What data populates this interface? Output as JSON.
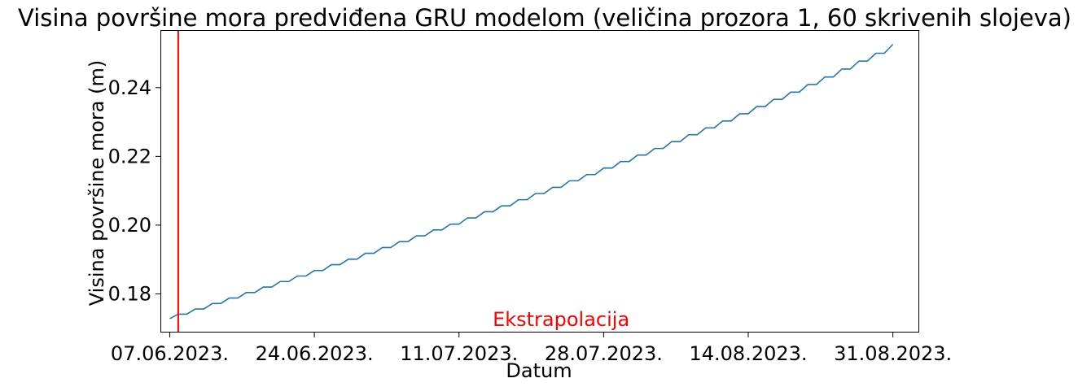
{
  "chart_data": {
    "type": "line",
    "title": "Visina površine mora predviđena GRU modelom (veličina prozora 1, 60 skrivenih slojeva)",
    "xlabel": "Datum",
    "ylabel": "Visina površine mora (m)",
    "ylim": [
      0.169,
      0.2565
    ],
    "xlim": [
      "2023-06-06",
      "2023-09-03"
    ],
    "yticks": [
      {
        "value": 0.18,
        "label": "0.18"
      },
      {
        "value": 0.2,
        "label": "0.20"
      },
      {
        "value": 0.22,
        "label": "0.22"
      },
      {
        "value": 0.24,
        "label": "0.24"
      }
    ],
    "xticks": [
      {
        "date": "2023-06-07",
        "label": "07.06.2023."
      },
      {
        "date": "2023-06-24",
        "label": "24.06.2023."
      },
      {
        "date": "2023-07-11",
        "label": "11.07.2023."
      },
      {
        "date": "2023-07-28",
        "label": "28.07.2023."
      },
      {
        "date": "2023-08-14",
        "label": "14.08.2023."
      },
      {
        "date": "2023-08-31",
        "label": "31.08.2023."
      }
    ],
    "series": [
      {
        "color": "#1f77b4",
        "x": [
          "2023-06-07",
          "2023-06-08",
          "2023-06-09",
          "2023-06-10",
          "2023-06-11",
          "2023-06-12",
          "2023-06-13",
          "2023-06-14",
          "2023-06-15",
          "2023-06-16",
          "2023-06-17",
          "2023-06-18",
          "2023-06-19",
          "2023-06-20",
          "2023-06-21",
          "2023-06-22",
          "2023-06-23",
          "2023-06-24",
          "2023-06-25",
          "2023-06-26",
          "2023-06-27",
          "2023-06-28",
          "2023-06-29",
          "2023-06-30",
          "2023-07-01",
          "2023-07-02",
          "2023-07-03",
          "2023-07-04",
          "2023-07-05",
          "2023-07-06",
          "2023-07-07",
          "2023-07-08",
          "2023-07-09",
          "2023-07-10",
          "2023-07-11",
          "2023-07-12",
          "2023-07-13",
          "2023-07-14",
          "2023-07-15",
          "2023-07-16",
          "2023-07-17",
          "2023-07-18",
          "2023-07-19",
          "2023-07-20",
          "2023-07-21",
          "2023-07-22",
          "2023-07-23",
          "2023-07-24",
          "2023-07-25",
          "2023-07-26",
          "2023-07-27",
          "2023-07-28",
          "2023-07-29",
          "2023-07-30",
          "2023-07-31",
          "2023-08-01",
          "2023-08-02",
          "2023-08-03",
          "2023-08-04",
          "2023-08-05",
          "2023-08-06",
          "2023-08-07",
          "2023-08-08",
          "2023-08-09",
          "2023-08-10",
          "2023-08-11",
          "2023-08-12",
          "2023-08-13",
          "2023-08-14",
          "2023-08-15",
          "2023-08-16",
          "2023-08-17",
          "2023-08-18",
          "2023-08-19",
          "2023-08-20",
          "2023-08-21",
          "2023-08-22",
          "2023-08-23",
          "2023-08-24",
          "2023-08-25",
          "2023-08-26",
          "2023-08-27",
          "2023-08-28",
          "2023-08-29",
          "2023-08-30",
          "2023-08-31"
        ],
        "values": [
          0.1728,
          0.1741,
          0.1741,
          0.1756,
          0.1756,
          0.1772,
          0.1772,
          0.1788,
          0.1788,
          0.1804,
          0.1804,
          0.182,
          0.182,
          0.1836,
          0.1836,
          0.1852,
          0.1852,
          0.1868,
          0.1868,
          0.1885,
          0.1885,
          0.1901,
          0.1901,
          0.1918,
          0.1918,
          0.1935,
          0.1935,
          0.1952,
          0.1952,
          0.1969,
          0.1969,
          0.1986,
          0.1986,
          0.2003,
          0.2003,
          0.2021,
          0.2021,
          0.2039,
          0.2039,
          0.2056,
          0.2056,
          0.2074,
          0.2074,
          0.2092,
          0.2092,
          0.211,
          0.211,
          0.2129,
          0.2129,
          0.2147,
          0.2147,
          0.2166,
          0.2166,
          0.2185,
          0.2185,
          0.2204,
          0.2204,
          0.2223,
          0.2223,
          0.2243,
          0.2243,
          0.2263,
          0.2263,
          0.2283,
          0.2283,
          0.2303,
          0.2303,
          0.2324,
          0.2324,
          0.2345,
          0.2345,
          0.2366,
          0.2366,
          0.2387,
          0.2387,
          0.2409,
          0.2409,
          0.2431,
          0.2431,
          0.2454,
          0.2454,
          0.2477,
          0.2477,
          0.25,
          0.25,
          0.2526
        ]
      }
    ],
    "vline": {
      "date": "2023-06-08",
      "color": "#ff0000"
    },
    "annotation": {
      "text": "Ekstrapolacija",
      "date": "2023-07-23",
      "value": 0.1725,
      "color": "#ff0000"
    },
    "grid": false
  }
}
